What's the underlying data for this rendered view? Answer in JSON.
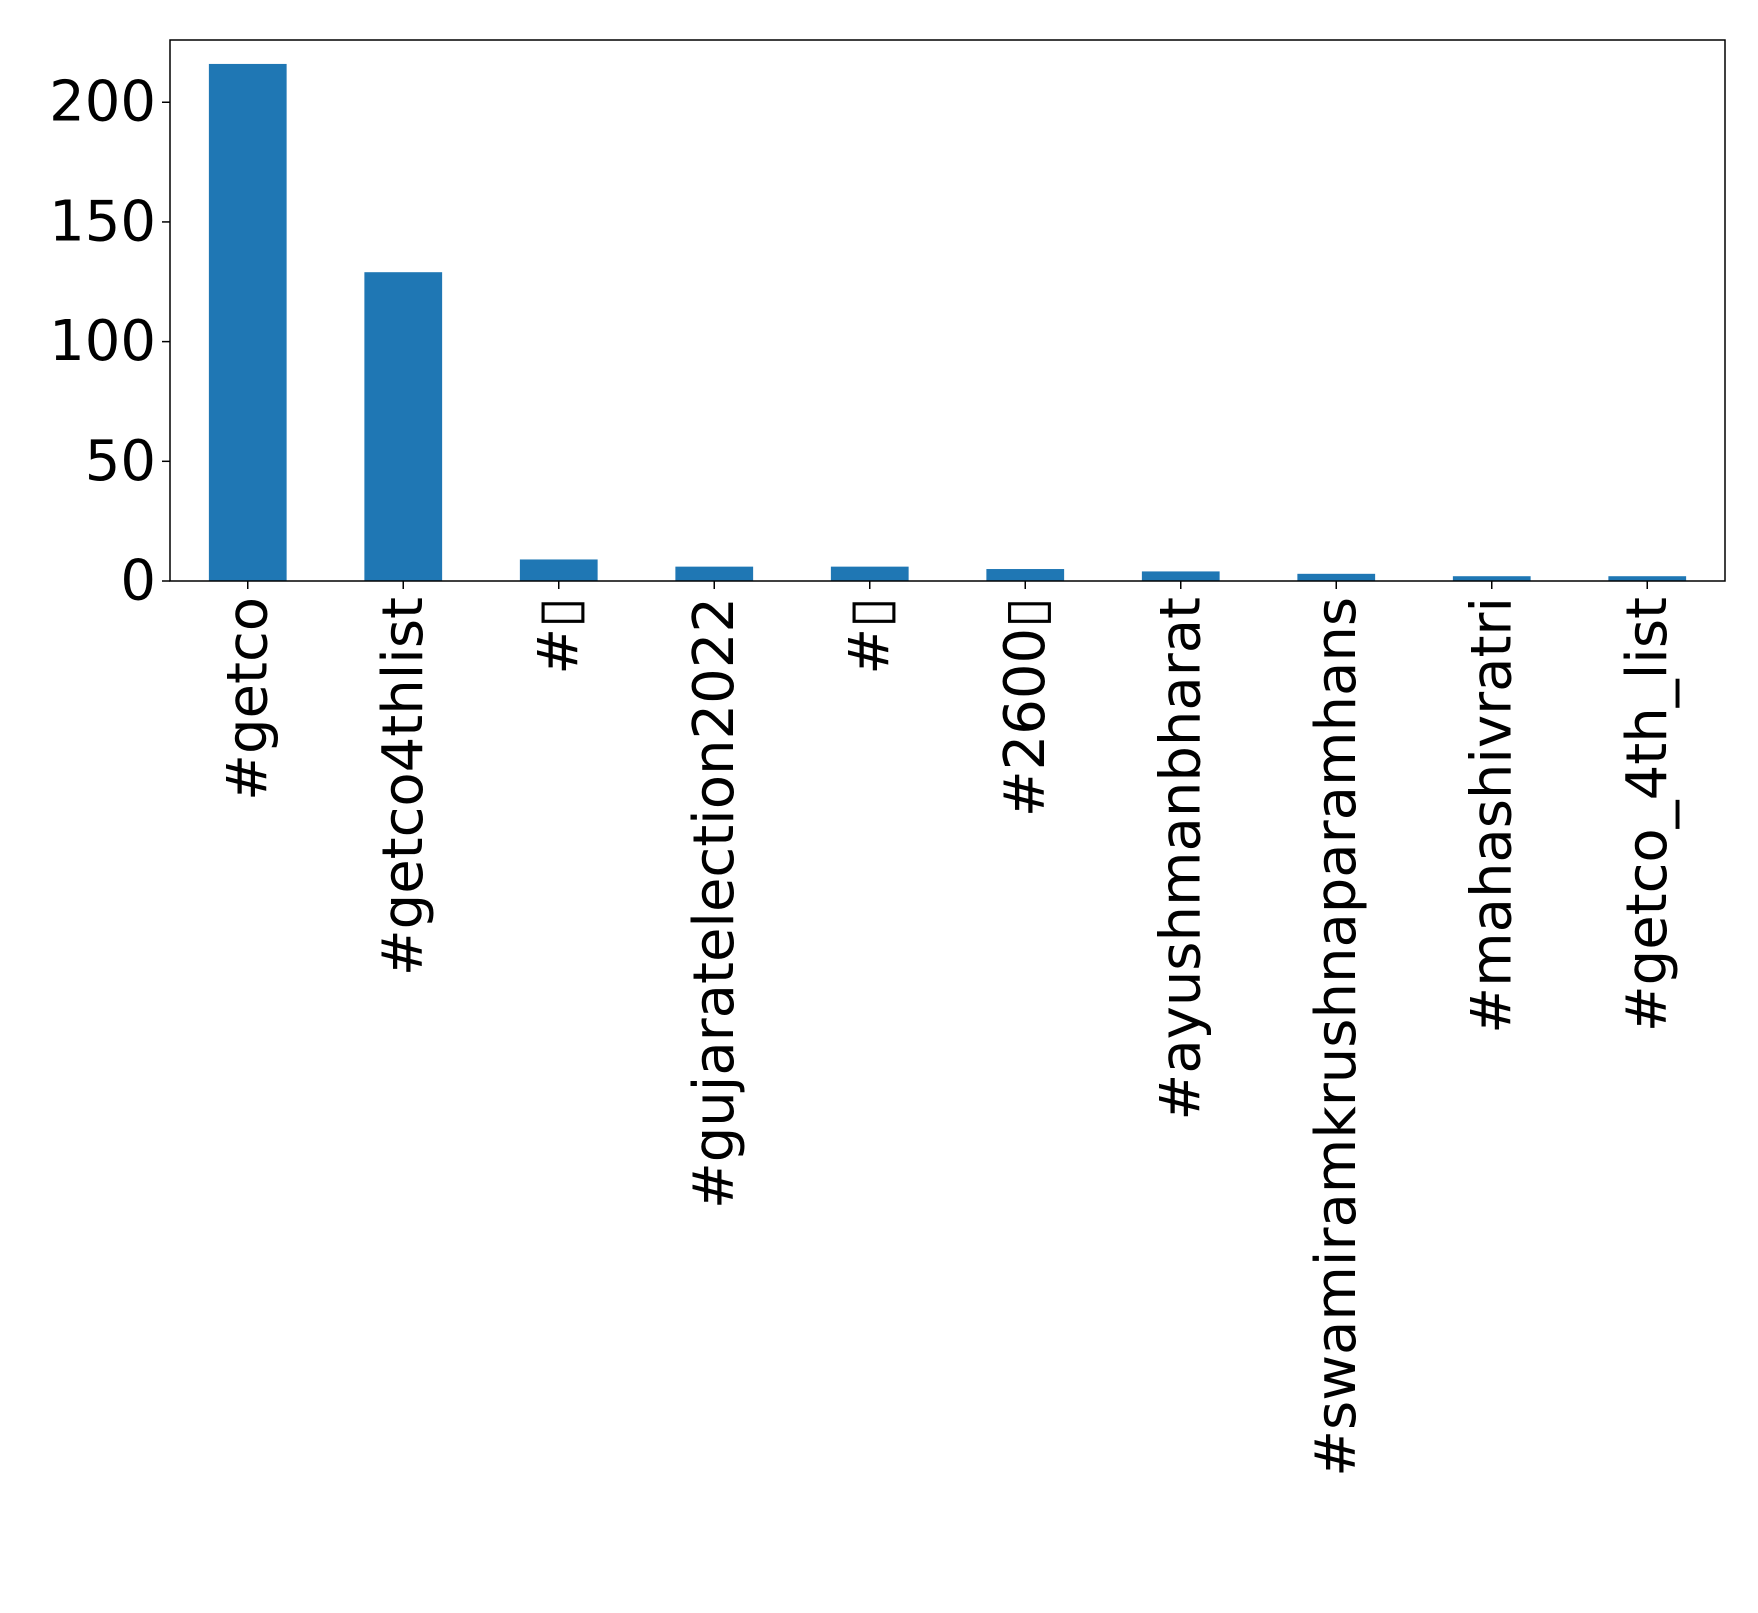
{
  "chart_data": {
    "type": "bar",
    "title": "",
    "xlabel": "",
    "ylabel": "",
    "categories": [
      "#getco",
      "#getco4thlist",
      "#▯",
      "#gujaratelection2022",
      "#▯",
      "#2600▯",
      "#ayushmanbharat",
      "#swamiramkrushnaparamhans",
      "#mahashivratri",
      "#getco_4th_list"
    ],
    "values": [
      216,
      129,
      9,
      6,
      6,
      5,
      4,
      3,
      2,
      2
    ],
    "ylim": [
      0,
      226
    ],
    "yticks": [
      0,
      50,
      100,
      150,
      200
    ],
    "ytick_labels": [
      "0",
      "50",
      "100",
      "150",
      "200"
    ],
    "grid": false,
    "legend": "none",
    "bar_color": "#1f77b4",
    "axis_color": "#000000"
  }
}
